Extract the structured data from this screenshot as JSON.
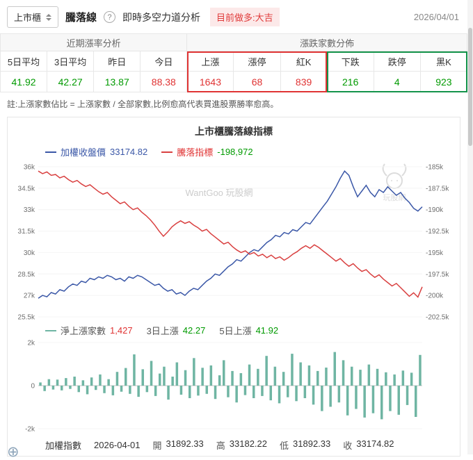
{
  "header": {
    "market_selector": "上市櫃",
    "title": "騰落線",
    "help_glyph": "?",
    "analysis_link": "即時多空力道分析",
    "signal_badge": "目前做多:大吉",
    "date": "2026/04/01"
  },
  "summary_table": {
    "group_headers": [
      "近期漲率分析",
      "漲跌家數分佈"
    ],
    "columns": [
      "5日平均",
      "3日平均",
      "昨日",
      "今日",
      "上漲",
      "漲停",
      "紅K",
      "下跌",
      "跌停",
      "黑K"
    ],
    "values": [
      "41.92",
      "42.27",
      "13.87",
      "88.38",
      "1643",
      "68",
      "839",
      "216",
      "4",
      "923"
    ]
  },
  "note": "註:上漲家數佔比 = 上漲家數 / 全部家數,比例愈高代表買進股票勝率愈高。",
  "chart": {
    "title": "上市櫃騰落線指標",
    "watermark": "WantGoo 玩股網",
    "logo_text": "玩股網",
    "close_label": "加權收盤價",
    "close_value": "33174.82",
    "ad_label": "騰落指標",
    "ad_value": "-198,972",
    "adv_label": "淨上漲家數",
    "adv_value": "1,427",
    "d3_label": "3日上漲",
    "d3_value": "42.27",
    "d5_label": "5日上漲",
    "d5_value": "41.92"
  },
  "footer": {
    "index_label": "加權指數",
    "date": "2026-04-01",
    "open_label": "開",
    "open": "31892.33",
    "high_label": "高",
    "high": "33182.22",
    "low_label": "低",
    "low": "31892.33",
    "close_label": "收",
    "close": "33174.82"
  },
  "icons": {
    "zoom_glyph": "⊕"
  },
  "colors": {
    "up_red": "#e03333",
    "down_green": "#009a00",
    "red_box_border": "#e03333",
    "green_box_border": "#13934a",
    "index_blue": "#3a57a7",
    "ad_line_red": "#d94040",
    "bar_teal": "#6fb5a3",
    "badge_bg": "#fce9e9",
    "badge_text": "#e03a3a"
  },
  "chart_data": [
    {
      "type": "line",
      "title": "上市櫃騰落線指標",
      "legend_position": "top-left",
      "grid": false,
      "left_axis": {
        "label": "加權收盤價",
        "unit": "k",
        "min": 25.5,
        "max": 36,
        "ticks": [
          "36k",
          "34.5k",
          "33k",
          "31.5k",
          "30k",
          "28.5k",
          "27k",
          "25.5k"
        ]
      },
      "right_axis": {
        "label": "騰落指標",
        "unit": "k",
        "min": -202.5,
        "max": -185,
        "ticks": [
          "-185k",
          "-187.5k",
          "-190k",
          "-192.5k",
          "-195k",
          "-197.5k",
          "-200k",
          "-202.5k"
        ]
      },
      "series": [
        {
          "name": "加權收盤價",
          "axis": "left",
          "color": "#3a57a7",
          "last_value": 33174.82,
          "values_k": [
            26.8,
            27.0,
            26.9,
            27.2,
            27.1,
            27.4,
            27.3,
            27.6,
            27.8,
            27.7,
            28.0,
            27.9,
            28.2,
            28.1,
            28.3,
            28.2,
            28.4,
            28.3,
            28.1,
            28.2,
            28.0,
            28.3,
            28.2,
            28.4,
            28.3,
            28.1,
            27.9,
            27.7,
            27.8,
            27.5,
            27.3,
            27.4,
            27.1,
            27.2,
            27.0,
            27.3,
            27.5,
            27.4,
            27.7,
            28.0,
            28.2,
            28.5,
            28.4,
            28.7,
            29.0,
            29.2,
            29.5,
            29.4,
            29.7,
            30.0,
            30.2,
            30.1,
            30.4,
            30.7,
            30.9,
            31.2,
            31.1,
            31.4,
            31.3,
            31.6,
            31.5,
            31.8,
            32.1,
            32.0,
            32.4,
            32.8,
            33.2,
            33.6,
            34.1,
            34.6,
            35.2,
            35.7,
            35.4,
            34.6,
            33.9,
            34.3,
            34.7,
            34.2,
            33.9,
            34.4,
            34.2,
            34.6,
            34.3,
            34.0,
            34.2,
            33.8,
            33.5,
            33.1,
            32.9,
            33.2
          ]
        },
        {
          "name": "騰落指標",
          "axis": "right",
          "color": "#d94040",
          "last_value": -198972,
          "values_k": [
            -185.5,
            -185.8,
            -185.6,
            -186.0,
            -185.9,
            -186.3,
            -186.1,
            -186.5,
            -186.8,
            -186.6,
            -187.0,
            -187.3,
            -187.1,
            -187.5,
            -187.9,
            -188.2,
            -188.0,
            -188.5,
            -188.9,
            -189.3,
            -189.1,
            -189.6,
            -190.0,
            -189.8,
            -190.3,
            -190.7,
            -191.2,
            -191.8,
            -192.5,
            -193.1,
            -192.6,
            -192.0,
            -191.6,
            -191.3,
            -191.6,
            -191.4,
            -191.8,
            -192.1,
            -192.5,
            -192.3,
            -192.8,
            -193.2,
            -193.6,
            -194.0,
            -193.8,
            -194.3,
            -194.7,
            -195.0,
            -194.8,
            -195.2,
            -195.0,
            -195.4,
            -195.2,
            -195.6,
            -195.3,
            -195.7,
            -195.5,
            -195.9,
            -195.6,
            -195.2,
            -194.9,
            -194.5,
            -194.2,
            -194.5,
            -194.1,
            -194.4,
            -194.8,
            -195.2,
            -195.6,
            -196.0,
            -195.7,
            -196.2,
            -196.6,
            -196.3,
            -196.8,
            -197.2,
            -197.0,
            -197.5,
            -197.9,
            -197.6,
            -198.1,
            -198.5,
            -198.9,
            -198.6,
            -199.1,
            -199.6,
            -200.1,
            -199.7,
            -200.2,
            -199.0
          ]
        }
      ]
    },
    {
      "type": "bar",
      "left_axis": {
        "min": -2000,
        "max": 2000,
        "ticks": [
          "2k",
          "0",
          "-2k"
        ]
      },
      "series": [
        {
          "name": "淨上漲家數",
          "color": "#6fb5a3",
          "last_value": 1427,
          "values": [
            150,
            -250,
            300,
            -180,
            280,
            -220,
            350,
            -150,
            420,
            -300,
            250,
            -400,
            380,
            -200,
            520,
            -350,
            300,
            -450,
            640,
            -280,
            820,
            -380,
            1450,
            -520,
            760,
            -300,
            1150,
            -480,
            560,
            880,
            -650,
            420,
            1080,
            -420,
            720,
            -580,
            1280,
            -460,
            830,
            -380,
            940,
            -620,
            480,
            1180,
            -540,
            680,
            -780,
            580,
            -440,
            980,
            -580,
            780,
            -480,
            1380,
            -680,
            880,
            -820,
            640,
            -540,
            1480,
            -720,
            1080,
            -580,
            940,
            -880,
            680,
            -1180,
            840,
            -980,
            1560,
            -780,
            1180,
            -1380,
            880,
            -1080,
            740,
            -1480,
            980,
            -1280,
            780,
            -1560,
            620,
            -1180,
            520,
            -1350,
            700,
            -900,
            600,
            -1450,
            1427
          ]
        }
      ]
    }
  ]
}
